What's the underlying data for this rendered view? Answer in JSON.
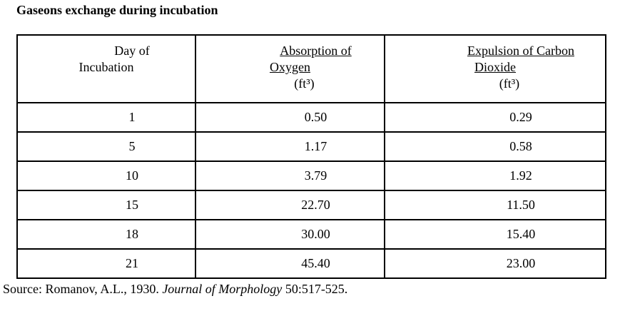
{
  "title": "Gaseons exchange during incubation",
  "table": {
    "headers": [
      {
        "line1": "Day of",
        "line2": "Incubation"
      },
      {
        "line1": "Absorption of",
        "line2": "Oxygen",
        "unit": "(ft³)"
      },
      {
        "line1": "Expulsion of Carbon",
        "line2": "Dioxide",
        "unit": "(ft³)"
      }
    ],
    "rows": [
      {
        "day": "1",
        "oxygen_absorption_ft3": "0.50",
        "co2_expulsion_ft3": "0.29"
      },
      {
        "day": "5",
        "oxygen_absorption_ft3": "1.17",
        "co2_expulsion_ft3": "0.58"
      },
      {
        "day": "10",
        "oxygen_absorption_ft3": "3.79",
        "co2_expulsion_ft3": "1.92"
      },
      {
        "day": "15",
        "oxygen_absorption_ft3": "22.70",
        "co2_expulsion_ft3": "11.50"
      },
      {
        "day": "18",
        "oxygen_absorption_ft3": "30.00",
        "co2_expulsion_ft3": "15.40"
      },
      {
        "day": "21",
        "oxygen_absorption_ft3": "45.40",
        "co2_expulsion_ft3": "23.00"
      }
    ]
  },
  "source": {
    "prefix": "Source: Romanov, A.L., 1930. ",
    "journal": "Journal of Morphology",
    "suffix": " 50:517-525."
  },
  "colors": {
    "text": "#000000",
    "background": "#ffffff",
    "border": "#000000"
  }
}
